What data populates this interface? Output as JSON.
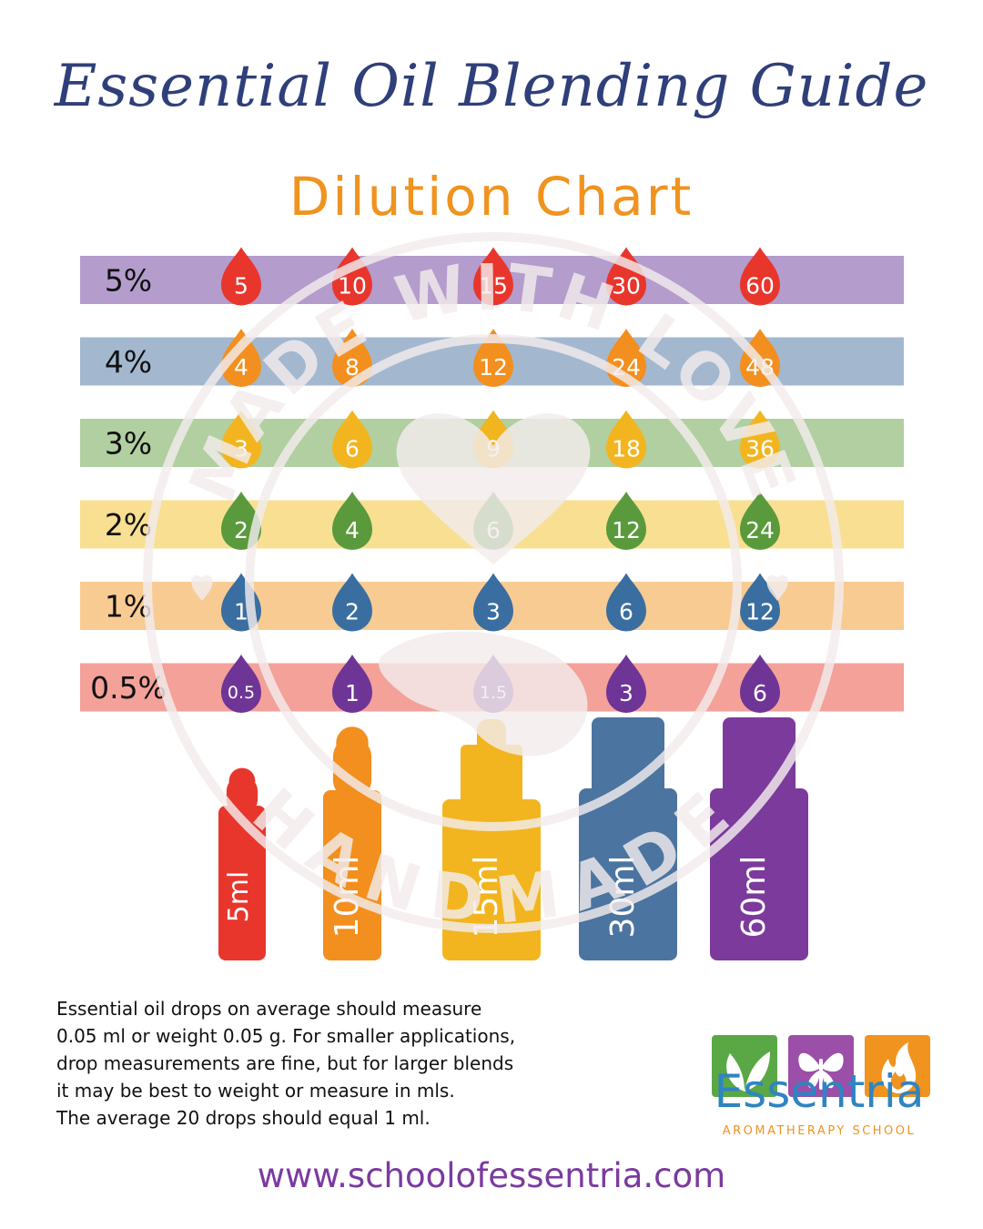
{
  "title": "Essential Oil Blending Guide",
  "subtitle": "Dilution Chart",
  "chart_data": {
    "type": "table",
    "columns": [
      "5ml",
      "10ml",
      "15ml",
      "30ml",
      "60ml"
    ],
    "rows": [
      {
        "label": "5%",
        "band_color": "#b49ccc",
        "drop_color": "#e8362c",
        "values": [
          "5",
          "10",
          "15",
          "30",
          "60"
        ]
      },
      {
        "label": "4%",
        "band_color": "#a3b8cf",
        "drop_color": "#f28f1e",
        "values": [
          "4",
          "8",
          "12",
          "24",
          "48"
        ]
      },
      {
        "label": "3%",
        "band_color": "#b1cfa1",
        "drop_color": "#f2b51f",
        "values": [
          "3",
          "6",
          "9",
          "18",
          "36"
        ]
      },
      {
        "label": "2%",
        "band_color": "#f8df92",
        "drop_color": "#5a9a3c",
        "values": [
          "2",
          "4",
          "6",
          "12",
          "24"
        ]
      },
      {
        "label": "1%",
        "band_color": "#f8cb93",
        "drop_color": "#3a6ea0",
        "values": [
          "1",
          "2",
          "3",
          "6",
          "12"
        ]
      },
      {
        "label": "0.5%",
        "band_color": "#f3a199",
        "drop_color": "#6e3596",
        "values": [
          "0.5",
          "1",
          "1.5",
          "3",
          "6"
        ]
      }
    ],
    "bottle_colors": [
      "#e8362c",
      "#f28f1e",
      "#f2b51f",
      "#4b74a0",
      "#7b3a9c"
    ]
  },
  "note_lines": [
    "Essential oil drops on average should measure",
    "0.05 ml or weight 0.05 g.  For smaller applications,",
    "drop measurements are fine, but for larger blends",
    "it may be best to weight or measure in mls.",
    "The average 20 drops should equal 1 ml."
  ],
  "website": "www.schoolofessentria.com",
  "logo": {
    "name": "Essentria",
    "tagline": "AROMATHERAPY SCHOOL",
    "tile_colors": [
      "#5aa845",
      "#9b4fa8",
      "#f0931f"
    ],
    "icons": [
      "leaf-icon",
      "butterfly-icon",
      "flame-icon"
    ]
  },
  "watermark": "MADE WITH LOVE HANDMADE"
}
